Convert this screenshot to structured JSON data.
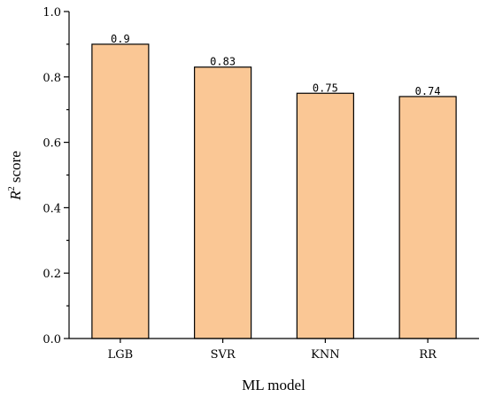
{
  "chart_data": {
    "type": "bar",
    "categories": [
      "LGB",
      "SVR",
      "KNN",
      "RR"
    ],
    "values": [
      0.9,
      0.83,
      0.75,
      0.74
    ],
    "data_labels": [
      "0.9",
      "0.83",
      "0.75",
      "0.74"
    ],
    "xlabel": "ML model",
    "ylabel_main": "R",
    "ylabel_sup": "2",
    "ylabel_rest": " score",
    "ylim": [
      0,
      1.0
    ],
    "yticks": [
      0.0,
      0.2,
      0.4,
      0.6,
      0.8,
      1.0
    ],
    "ytick_labels": [
      "0.0",
      "0.2",
      "0.4",
      "0.6",
      "0.8",
      "1.0"
    ],
    "bar_color": "#FAC795",
    "grid": false,
    "legend": "none"
  }
}
